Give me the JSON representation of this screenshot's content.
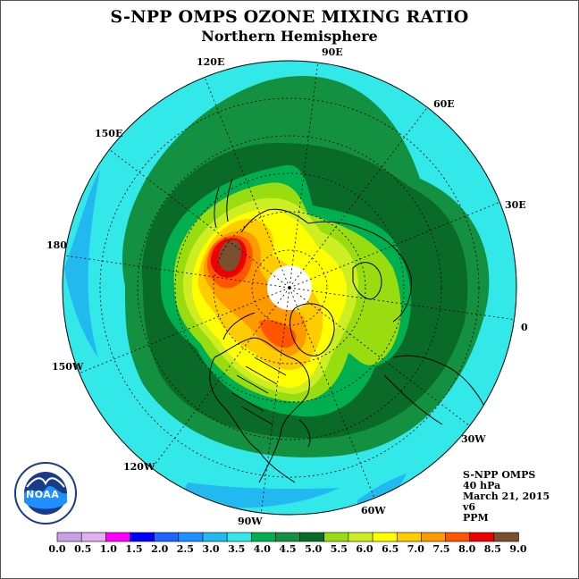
{
  "title": "S-NPP OMPS OZONE MIXING RATIO",
  "subtitle": "Northern Hemisphere",
  "longitude_labels": {
    "e90": "90E",
    "e120": "120E",
    "e60": "60E",
    "e150": "150E",
    "e30": "30E",
    "e180": "180",
    "zero": "0",
    "w150": "150W",
    "w30": "30W",
    "w120": "120W",
    "w60": "60W",
    "w90": "90W"
  },
  "info": {
    "instrument": "S-NPP OMPS",
    "level": "40 hPa",
    "date": "March 21, 2015",
    "version": "v6",
    "units": "PPM"
  },
  "logo_text": "NOAA",
  "colorbar": {
    "ticks": [
      "0.0",
      "0.5",
      "1.0",
      "1.5",
      "2.0",
      "2.5",
      "3.0",
      "3.5",
      "4.0",
      "4.5",
      "5.0",
      "5.5",
      "6.0",
      "6.5",
      "7.0",
      "7.5",
      "8.0",
      "8.5",
      "9.0"
    ],
    "colors": [
      "#c8a0e8",
      "#e0b0f0",
      "#ff00ff",
      "#0000ff",
      "#1e64ff",
      "#1e90ff",
      "#22b8f0",
      "#33e8e8",
      "#00b050",
      "#139040",
      "#0a6a28",
      "#99dd11",
      "#ccee22",
      "#ffff00",
      "#ffcc00",
      "#ff9900",
      "#ff5500",
      "#ee0000",
      "#7a5030"
    ]
  },
  "palette": {
    "ocean_cyan": "#33e8e8",
    "blue_patch": "#22b8f0",
    "green_dark": "#0a6a28",
    "green_mid": "#139040",
    "green_light": "#00b050",
    "lime": "#99dd11",
    "yellow_green": "#ccee22",
    "yellow": "#ffff00",
    "orange": "#ffcc00",
    "orange_dark": "#ff9900",
    "red_orange": "#ff5500",
    "red": "#ee0000",
    "brown": "#7a5030"
  }
}
